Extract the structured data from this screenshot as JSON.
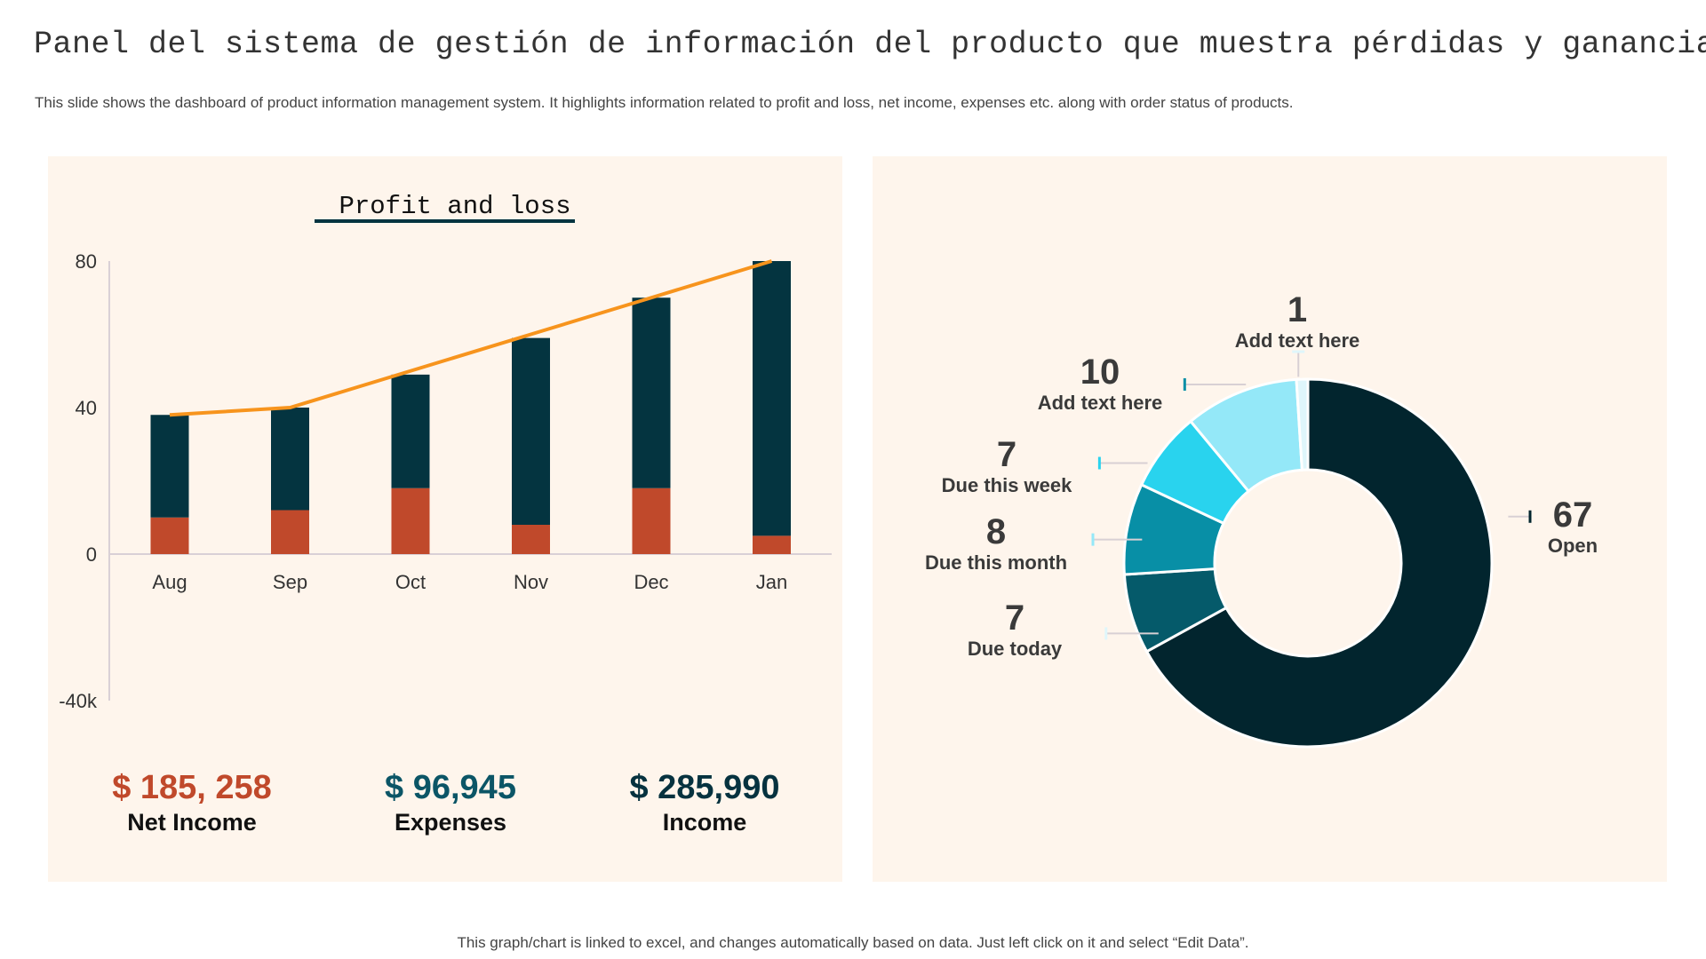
{
  "title": "Panel del sistema de gestión de información del producto que muestra pérdidas y ganancias",
  "subtitle": "This slide shows the dashboard of product information management system. It highlights information related to profit and loss, net income, expenses etc. along with order status of products.",
  "footer": "This graph/chart is linked to excel, and changes automatically based on data. Just left click on it and select “Edit Data”.",
  "stats": [
    {
      "value": "$ 185, 258",
      "label": "Net Income",
      "color": "#c0492b"
    },
    {
      "value": "$ 96,945",
      "label": "Expenses",
      "color": "#0b5566"
    },
    {
      "value": "$ 285,990",
      "label": "Income",
      "color": "#06323f"
    }
  ],
  "chart_data": [
    {
      "type": "bar",
      "title": "Profit and loss",
      "stacked": true,
      "categories": [
        "Aug",
        "Sep",
        "Oct",
        "Nov",
        "Dec",
        "Jan"
      ],
      "y_ticks": [
        "80",
        "40",
        "0",
        "-40k"
      ],
      "ylim": [
        -40,
        80
      ],
      "series": [
        {
          "type": "bar",
          "values": [
            10,
            12,
            18,
            8,
            18,
            5
          ],
          "color": "#c0492b"
        },
        {
          "type": "bar",
          "values": [
            28,
            28,
            31,
            51,
            52,
            75
          ],
          "color": "#043440"
        },
        {
          "type": "line",
          "values": [
            38,
            40,
            50,
            60,
            70,
            80
          ],
          "color": "#f7941d"
        }
      ],
      "grid": false
    },
    {
      "type": "pie",
      "donut": true,
      "slices": [
        {
          "value": 67,
          "label": "Open",
          "color": "#02252e"
        },
        {
          "value": 7,
          "label": "Due today",
          "color": "#055a6a"
        },
        {
          "value": 8,
          "label": "Due this month",
          "color": "#088fa6"
        },
        {
          "value": 7,
          "label": "Due this week",
          "color": "#29d3ee"
        },
        {
          "value": 10,
          "label": "Add text here",
          "color": "#94e8f8"
        },
        {
          "value": 1,
          "label": "Add text here",
          "color": "#dff6fb"
        }
      ]
    }
  ]
}
